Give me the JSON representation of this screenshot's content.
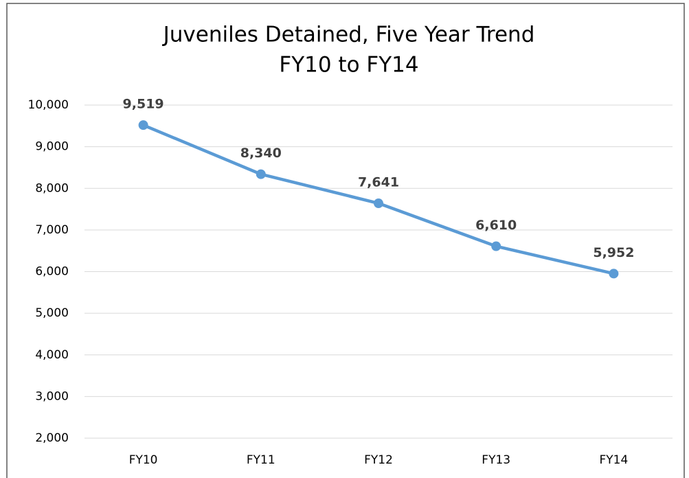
{
  "chart_data": {
    "type": "line",
    "title": [
      "Juveniles Detained, Five Year Trend",
      "FY10 to FY14"
    ],
    "categories": [
      "FY10",
      "FY11",
      "FY12",
      "FY13",
      "FY14"
    ],
    "values": [
      9519,
      8340,
      7641,
      6610,
      5952
    ],
    "value_labels": [
      "9,519",
      "8,340",
      "7,641",
      "6,610",
      "5,952"
    ],
    "color": "#5b9bd5",
    "ylim": [
      2000,
      10000
    ],
    "yticks": [
      {
        "value": 2000,
        "label": "2,000"
      },
      {
        "value": 3000,
        "label": "3,000"
      },
      {
        "value": 4000,
        "label": "4,000"
      },
      {
        "value": 5000,
        "label": "5,000"
      },
      {
        "value": 6000,
        "label": "6,000"
      },
      {
        "value": 7000,
        "label": "7,000"
      },
      {
        "value": 8000,
        "label": "8,000"
      },
      {
        "value": 9000,
        "label": "9,000"
      },
      {
        "value": 10000,
        "label": "10,000"
      }
    ],
    "grid": true
  }
}
